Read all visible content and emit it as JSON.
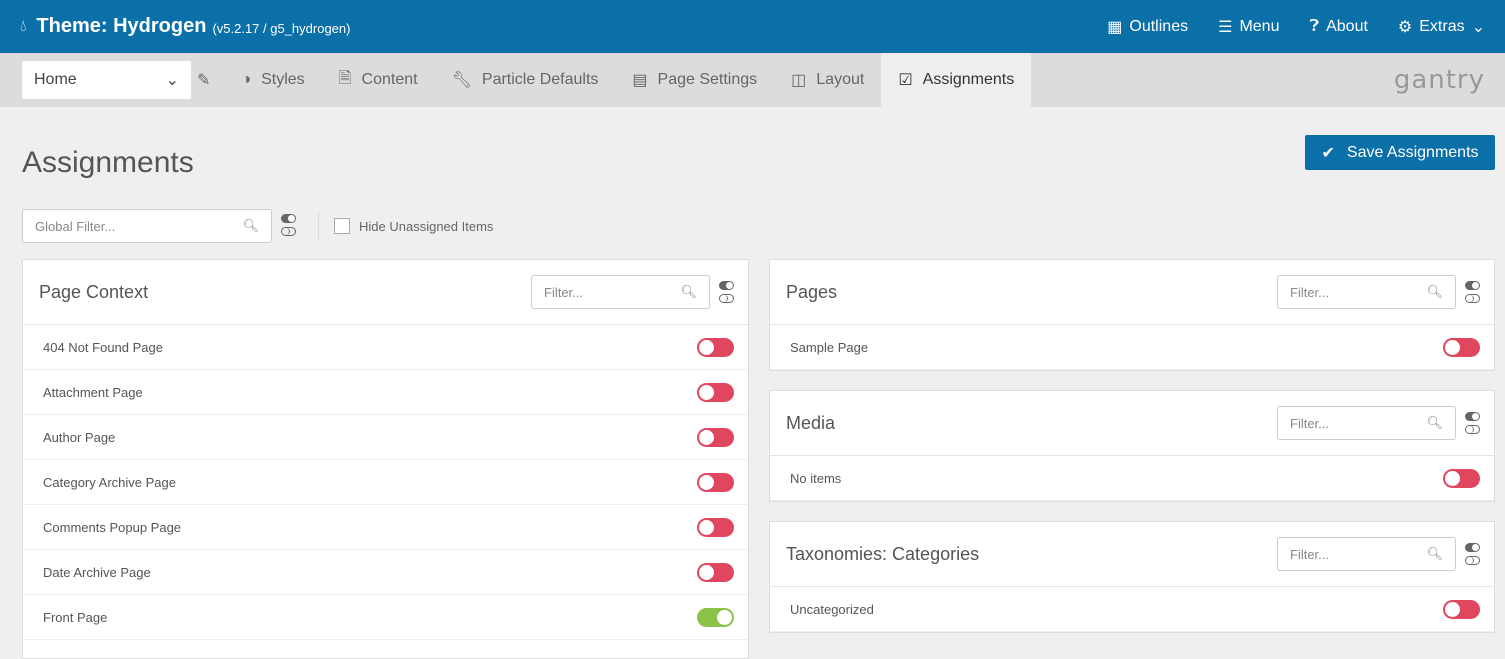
{
  "header": {
    "title": "Theme: Hydrogen",
    "version": "(v5.2.17 / g5_hydrogen)",
    "nav": [
      "Outlines",
      "Menu",
      "About",
      "Extras"
    ]
  },
  "toolbar": {
    "outline": "Home",
    "tabs": [
      "Styles",
      "Content",
      "Particle Defaults",
      "Page Settings",
      "Layout",
      "Assignments"
    ],
    "logo": "gantry"
  },
  "page": {
    "title": "Assignments",
    "save": "Save Assignments",
    "global_filter": "Global Filter...",
    "hide_unassigned": "Hide Unassigned Items"
  },
  "colors": {
    "brand": "#0b6fa8",
    "off": "#e0475f",
    "on": "#8bc34a"
  },
  "panels": {
    "context": {
      "title": "Page Context",
      "filter": "Filter...",
      "items": [
        {
          "label": "404 Not Found Page",
          "on": false
        },
        {
          "label": "Attachment Page",
          "on": false
        },
        {
          "label": "Author Page",
          "on": false
        },
        {
          "label": "Category Archive Page",
          "on": false
        },
        {
          "label": "Comments Popup Page",
          "on": false
        },
        {
          "label": "Date Archive Page",
          "on": false
        },
        {
          "label": "Front Page",
          "on": true
        }
      ]
    },
    "pages": {
      "title": "Pages",
      "filter": "Filter...",
      "items": [
        {
          "label": "Sample Page",
          "on": false
        }
      ]
    },
    "media": {
      "title": "Media",
      "filter": "Filter...",
      "items": [
        {
          "label": "No items",
          "on": false
        }
      ]
    },
    "categories": {
      "title": "Taxonomies: Categories",
      "filter": "Filter...",
      "items": [
        {
          "label": "Uncategorized",
          "on": false
        }
      ]
    }
  }
}
